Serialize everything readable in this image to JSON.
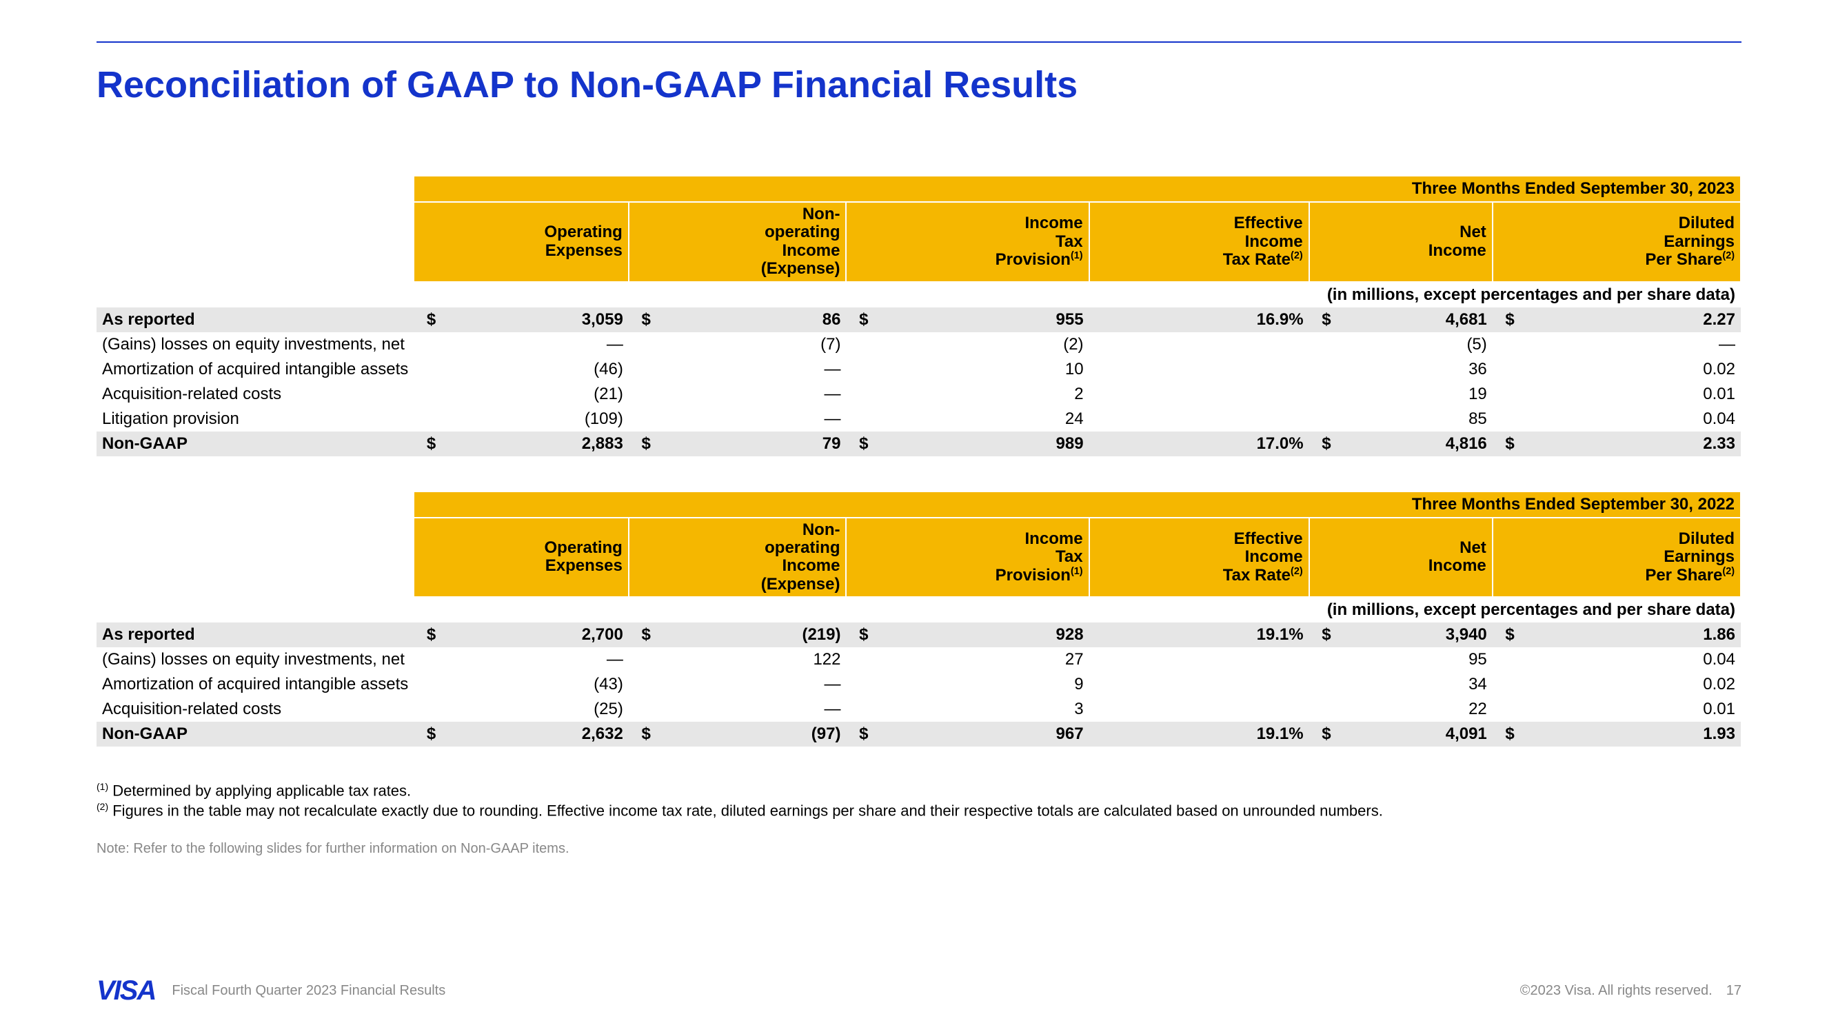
{
  "colors": {
    "brand": "#1434cb",
    "header_bg": "#f5b700",
    "row_shade": "#e6e6e6",
    "text": "#000000",
    "muted": "#888888",
    "background": "#ffffff"
  },
  "title": "Reconciliation of GAAP to Non-GAAP Financial Results",
  "columns": [
    "Operating\nExpenses",
    "Non-\noperating\nIncome\n(Expense)",
    "Income\nTax\nProvision",
    "Effective\nIncome\nTax Rate",
    "Net\nIncome",
    "Diluted\nEarnings\nPer Share"
  ],
  "column_sup": [
    "",
    "",
    "(1)",
    "(2)",
    "",
    "(2)"
  ],
  "units_label": "(in millions, except percentages and per share data)",
  "tables": [
    {
      "period": "Three Months Ended September 30, 2023",
      "rows": [
        {
          "label": "As reported",
          "shaded": true,
          "bold": true,
          "sym": [
            "$",
            "$",
            "$",
            "",
            "$",
            "$"
          ],
          "val": [
            "3,059",
            "86",
            "955",
            "16.9%",
            "4,681",
            "2.27"
          ]
        },
        {
          "label": "(Gains) losses on equity investments, net",
          "sym": [
            "",
            "",
            "",
            "",
            "",
            ""
          ],
          "val": [
            "—",
            "(7)",
            "(2)",
            "",
            "(5)",
            "—"
          ]
        },
        {
          "label": "Amortization of acquired intangible assets",
          "sym": [
            "",
            "",
            "",
            "",
            "",
            ""
          ],
          "val": [
            "(46)",
            "—",
            "10",
            "",
            "36",
            "0.02"
          ]
        },
        {
          "label": "Acquisition-related costs",
          "sym": [
            "",
            "",
            "",
            "",
            "",
            ""
          ],
          "val": [
            "(21)",
            "—",
            "2",
            "",
            "19",
            "0.01"
          ]
        },
        {
          "label": "Litigation provision",
          "sym": [
            "",
            "",
            "",
            "",
            "",
            ""
          ],
          "val": [
            "(109)",
            "—",
            "24",
            "",
            "85",
            "0.04"
          ]
        },
        {
          "label": "Non-GAAP",
          "shaded": true,
          "bold": true,
          "sym": [
            "$",
            "$",
            "$",
            "",
            "$",
            "$"
          ],
          "val": [
            "2,883",
            "79",
            "989",
            "17.0%",
            "4,816",
            "2.33"
          ]
        }
      ]
    },
    {
      "period": "Three Months Ended September 30, 2022",
      "rows": [
        {
          "label": "As reported",
          "shaded": true,
          "bold": true,
          "sym": [
            "$",
            "$",
            "$",
            "",
            "$",
            "$"
          ],
          "val": [
            "2,700",
            "(219)",
            "928",
            "19.1%",
            "3,940",
            "1.86"
          ]
        },
        {
          "label": "(Gains) losses on equity investments, net",
          "sym": [
            "",
            "",
            "",
            "",
            "",
            ""
          ],
          "val": [
            "—",
            "122",
            "27",
            "",
            "95",
            "0.04"
          ]
        },
        {
          "label": "Amortization of acquired intangible assets",
          "sym": [
            "",
            "",
            "",
            "",
            "",
            ""
          ],
          "val": [
            "(43)",
            "—",
            "9",
            "",
            "34",
            "0.02"
          ]
        },
        {
          "label": "Acquisition-related costs",
          "sym": [
            "",
            "",
            "",
            "",
            "",
            ""
          ],
          "val": [
            "(25)",
            "—",
            "3",
            "",
            "22",
            "0.01"
          ]
        },
        {
          "label": "Non-GAAP",
          "shaded": true,
          "bold": true,
          "sym": [
            "$",
            "$",
            "$",
            "",
            "$",
            "$"
          ],
          "val": [
            "2,632",
            "(97)",
            "967",
            "19.1%",
            "4,091",
            "1.93"
          ]
        }
      ]
    }
  ],
  "footnotes": [
    {
      "num": "(1)",
      "text": "Determined by applying applicable tax rates."
    },
    {
      "num": "(2)",
      "text": "Figures in the table may not recalculate exactly due to rounding. Effective income tax rate, diluted earnings per share and their respective totals are calculated based on unrounded numbers."
    }
  ],
  "note": "Note: Refer to the following slides for further information on Non-GAAP items.",
  "footer": {
    "logo": "VISA",
    "left": "Fiscal Fourth Quarter 2023 Financial Results",
    "right": "©2023 Visa. All rights reserved.",
    "page": "17"
  }
}
